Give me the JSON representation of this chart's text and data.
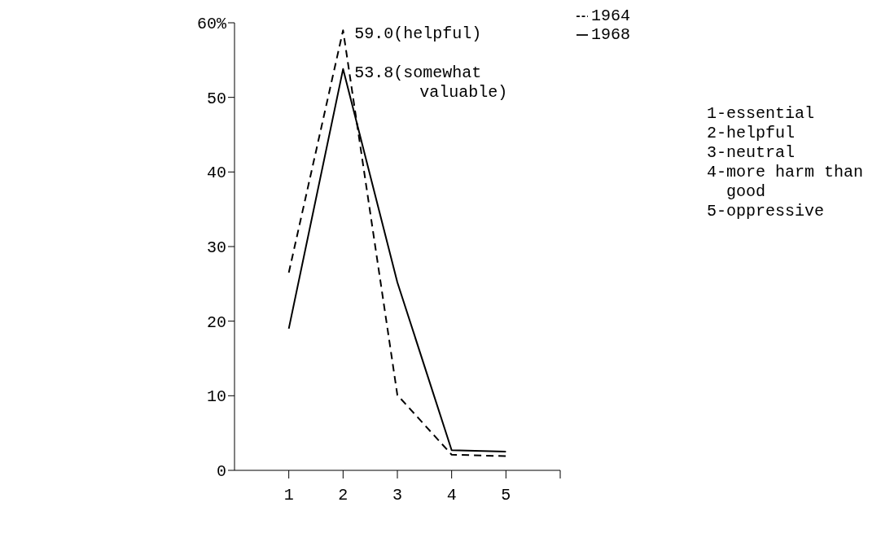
{
  "chart_data": {
    "type": "line",
    "x": [
      1,
      2,
      3,
      4,
      5
    ],
    "series": [
      {
        "name": "1964",
        "color": "#000000",
        "line_style": "dashed",
        "values": [
          26.5,
          59.0,
          10.1,
          2.1,
          1.9
        ]
      },
      {
        "name": "1968",
        "color": "#000000",
        "line_style": "solid",
        "values": [
          19,
          53.8,
          25.2,
          2.7,
          2.5
        ]
      }
    ],
    "xlim": [
      0,
      6
    ],
    "xticks": [
      1,
      2,
      3,
      4,
      5,
      {
        "value": 6,
        "label": null
      }
    ],
    "ylim": [
      0,
      60
    ],
    "yticks": [
      0,
      10,
      20,
      30,
      40,
      50,
      {
        "value": 60,
        "label": "60%"
      }
    ],
    "grid": false,
    "legend": "top right",
    "marker": "none",
    "annotations": [
      {
        "text": "59.0(helpful)",
        "x": 2,
        "y": 59.0
      },
      {
        "text": "53.8(somewhat valuable)",
        "x": 2,
        "y": 53.8
      },
      "1-essential",
      "2-helpful",
      "3-neutral",
      "4-more harm than good",
      "5-oppressive"
    ]
  }
}
